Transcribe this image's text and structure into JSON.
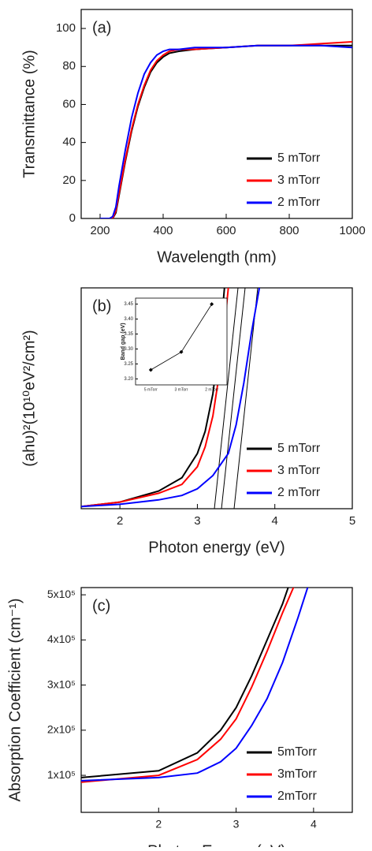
{
  "chart_data": [
    {
      "type": "line",
      "annotation": "(a)",
      "xlabel": "Wavelength (nm)",
      "ylabel": "Transmittance (%)",
      "x": [
        200,
        230,
        240,
        250,
        260,
        280,
        300,
        320,
        340,
        360,
        380,
        400,
        420,
        450,
        500,
        600,
        700,
        800,
        900,
        1000
      ],
      "series": [
        {
          "name": "5 mTorr",
          "color": "#000000",
          "values": [
            0,
            0,
            0,
            3,
            12,
            30,
            46,
            59,
            69,
            77,
            82,
            85,
            87,
            88,
            89,
            90,
            91,
            91,
            91,
            91
          ]
        },
        {
          "name": "3 mTorr",
          "color": "#ff0000",
          "values": [
            0,
            0,
            0,
            4,
            13,
            31,
            47,
            60,
            70,
            78,
            83,
            86,
            88,
            89,
            89,
            90,
            91,
            91,
            92,
            93
          ]
        },
        {
          "name": "2 mTorr",
          "color": "#0000ff",
          "values": [
            0,
            0,
            1,
            6,
            17,
            36,
            53,
            66,
            76,
            82,
            86,
            88,
            89,
            89,
            90,
            90,
            91,
            91,
            91,
            90
          ]
        }
      ],
      "xlim": [
        140,
        1000
      ],
      "xticks": [
        200,
        400,
        600,
        800,
        1000
      ],
      "ylim": [
        0,
        110
      ],
      "yticks": [
        0,
        20,
        40,
        60,
        80,
        100
      ],
      "legend": "lower right"
    },
    {
      "type": "line",
      "annotation": "(b)",
      "xlabel": "Photon energy (eV)",
      "ylabel": "(ahυ)²(10¹⁰eV²/cm²)",
      "series": [
        {
          "name": "5 mTorr",
          "color": "#000000",
          "x": [
            1.5,
            2,
            2.5,
            2.8,
            3.0,
            3.1,
            3.2,
            3.3,
            3.35
          ],
          "values": [
            1,
            3,
            8,
            14,
            25,
            35,
            52,
            80,
            100
          ]
        },
        {
          "name": "3 mTorr",
          "color": "#ff0000",
          "x": [
            1.5,
            2,
            2.5,
            2.8,
            3.0,
            3.1,
            3.2,
            3.3,
            3.4
          ],
          "values": [
            1,
            3,
            7,
            11,
            19,
            28,
            42,
            65,
            100
          ]
        },
        {
          "name": "2 mTorr",
          "color": "#0000ff",
          "x": [
            1.5,
            2,
            2.5,
            2.8,
            3.0,
            3.2,
            3.4,
            3.5,
            3.6,
            3.7,
            3.8
          ],
          "values": [
            1,
            2,
            4,
            6,
            9,
            15,
            25,
            38,
            57,
            80,
            100
          ]
        }
      ],
      "xlim": [
        1.5,
        5
      ],
      "xticks": [
        2,
        3,
        4,
        5
      ],
      "ylim": [
        0,
        100
      ],
      "legend": "lower right"
    },
    {
      "type": "line",
      "ylabel": "Band gap (eV)",
      "categories": [
        "5 mTorr",
        "3 mTorr",
        "2 mTorr"
      ],
      "values": [
        3.23,
        3.29,
        3.45
      ],
      "color": "#000000",
      "ylim": [
        3.18,
        3.47
      ],
      "yticks": [
        {
          "value": 3.2,
          "label": "3.20"
        },
        3.25,
        {
          "value": 3.3,
          "label": "3.30"
        },
        3.35,
        {
          "value": 3.4,
          "label": "3.40"
        },
        3.45
      ]
    },
    {
      "type": "line",
      "annotation": "(c)",
      "xlabel": "Photon Energy (eV)",
      "ylabel": "Absorption Coefficient (cm⁻¹)",
      "series": [
        {
          "name": "5mTorr",
          "color": "#000000",
          "x": [
            1,
            2,
            2.5,
            2.8,
            3.0,
            3.2,
            3.4,
            3.6,
            3.7
          ],
          "values": [
            95000,
            110000,
            150000,
            200000,
            250000,
            320000,
            400000,
            480000,
            530000
          ]
        },
        {
          "name": "3mTorr",
          "color": "#ff0000",
          "x": [
            1,
            2,
            2.5,
            2.8,
            3.0,
            3.2,
            3.4,
            3.6,
            3.8
          ],
          "values": [
            85000,
            100000,
            135000,
            180000,
            225000,
            295000,
            375000,
            460000,
            540000
          ]
        },
        {
          "name": "2mTorr",
          "color": "#0000ff",
          "x": [
            1,
            2,
            2.5,
            2.8,
            3.0,
            3.2,
            3.4,
            3.6,
            3.8,
            3.95
          ],
          "values": [
            88000,
            95000,
            105000,
            130000,
            160000,
            210000,
            270000,
            350000,
            450000,
            530000
          ]
        }
      ],
      "xlim": [
        1,
        4.5
      ],
      "xticks": [
        2,
        3,
        4
      ],
      "ylim": [
        18000,
        516000
      ],
      "yticks": [
        {
          "value": 100000,
          "label": "1x10⁵"
        },
        {
          "value": 200000,
          "label": "2x10⁵"
        },
        {
          "value": 300000,
          "label": "3x10⁵"
        },
        {
          "value": 400000,
          "label": "4x10⁵"
        },
        {
          "value": 500000,
          "label": "5x10⁵"
        }
      ],
      "legend": "lower right"
    }
  ]
}
